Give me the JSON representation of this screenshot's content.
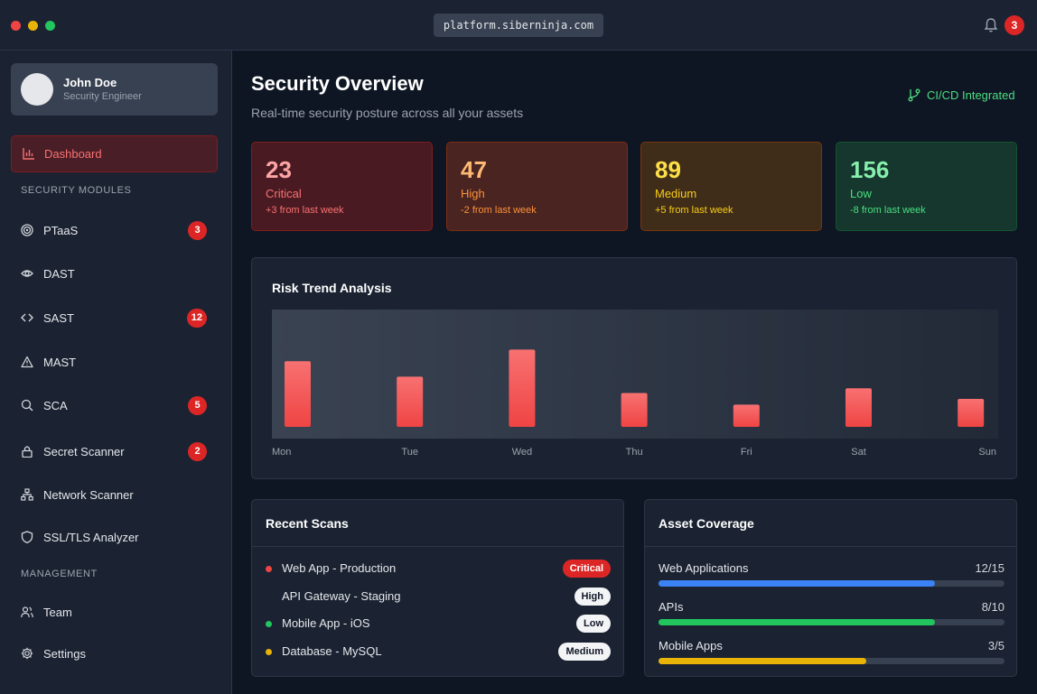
{
  "titlebar": {
    "url": "platform.siberninja.com",
    "notifications": "3"
  },
  "user": {
    "name": "John Doe",
    "role": "Security Engineer"
  },
  "nav": {
    "dashboard": "Dashboard",
    "section_modules": "SECURITY MODULES",
    "modules": [
      {
        "label": "PTaaS",
        "icon": "target-icon",
        "badge": "3"
      },
      {
        "label": "DAST",
        "icon": "eye-icon",
        "badge": ""
      },
      {
        "label": "SAST",
        "icon": "code-icon",
        "badge": "12"
      },
      {
        "label": "MAST",
        "icon": "warning-icon",
        "badge": ""
      },
      {
        "label": "SCA",
        "icon": "search-icon",
        "badge": "5"
      },
      {
        "label": "Secret Scanner",
        "icon": "lock-icon",
        "badge": "2"
      },
      {
        "label": "Network Scanner",
        "icon": "network-icon",
        "badge": ""
      },
      {
        "label": "SSL/TLS Analyzer",
        "icon": "shield-icon",
        "badge": ""
      }
    ],
    "section_management": "MANAGEMENT",
    "management": [
      {
        "label": "Team",
        "icon": "users-icon"
      },
      {
        "label": "Settings",
        "icon": "gear-icon"
      }
    ]
  },
  "header": {
    "title": "Security Overview",
    "subtitle": "Real-time security posture across all your assets",
    "integration": "CI/CD Integrated"
  },
  "stats": {
    "critical": {
      "value": "23",
      "label": "Critical",
      "change": "+3 from last week"
    },
    "high": {
      "value": "47",
      "label": "High",
      "change": "-2 from last week"
    },
    "medium": {
      "value": "89",
      "label": "Medium",
      "change": "+5 from last week"
    },
    "low": {
      "value": "156",
      "label": "Low",
      "change": "-8 from last week"
    }
  },
  "chart_data": {
    "type": "bar",
    "title": "Risk Trend Analysis",
    "categories": [
      "Mon",
      "Tue",
      "Wed",
      "Thu",
      "Fri",
      "Sat",
      "Sun"
    ],
    "values": [
      68,
      52,
      80,
      35,
      23,
      40,
      29
    ],
    "ylim": [
      0,
      100
    ],
    "grid": false,
    "color": "#ef4444"
  },
  "recent_scans": {
    "title": "Recent Scans",
    "items": [
      {
        "name": "Web App - Production",
        "severity": "Critical",
        "dot": "#ef4444"
      },
      {
        "name": "API Gateway - Staging",
        "severity": "High",
        "dot": ""
      },
      {
        "name": "Mobile App - iOS",
        "severity": "Low",
        "dot": "#22c55e"
      },
      {
        "name": "Database - MySQL",
        "severity": "Medium",
        "dot": "#eab308"
      }
    ]
  },
  "asset_coverage": {
    "title": "Asset Coverage",
    "items": [
      {
        "name": "Web Applications",
        "count": "12/15",
        "fraction": 0.8,
        "color": "#3b82f6"
      },
      {
        "name": "APIs",
        "count": "8/10",
        "fraction": 0.8,
        "color": "#22c55e"
      },
      {
        "name": "Mobile Apps",
        "count": "3/5",
        "fraction": 0.6,
        "color": "#eab308"
      }
    ]
  }
}
